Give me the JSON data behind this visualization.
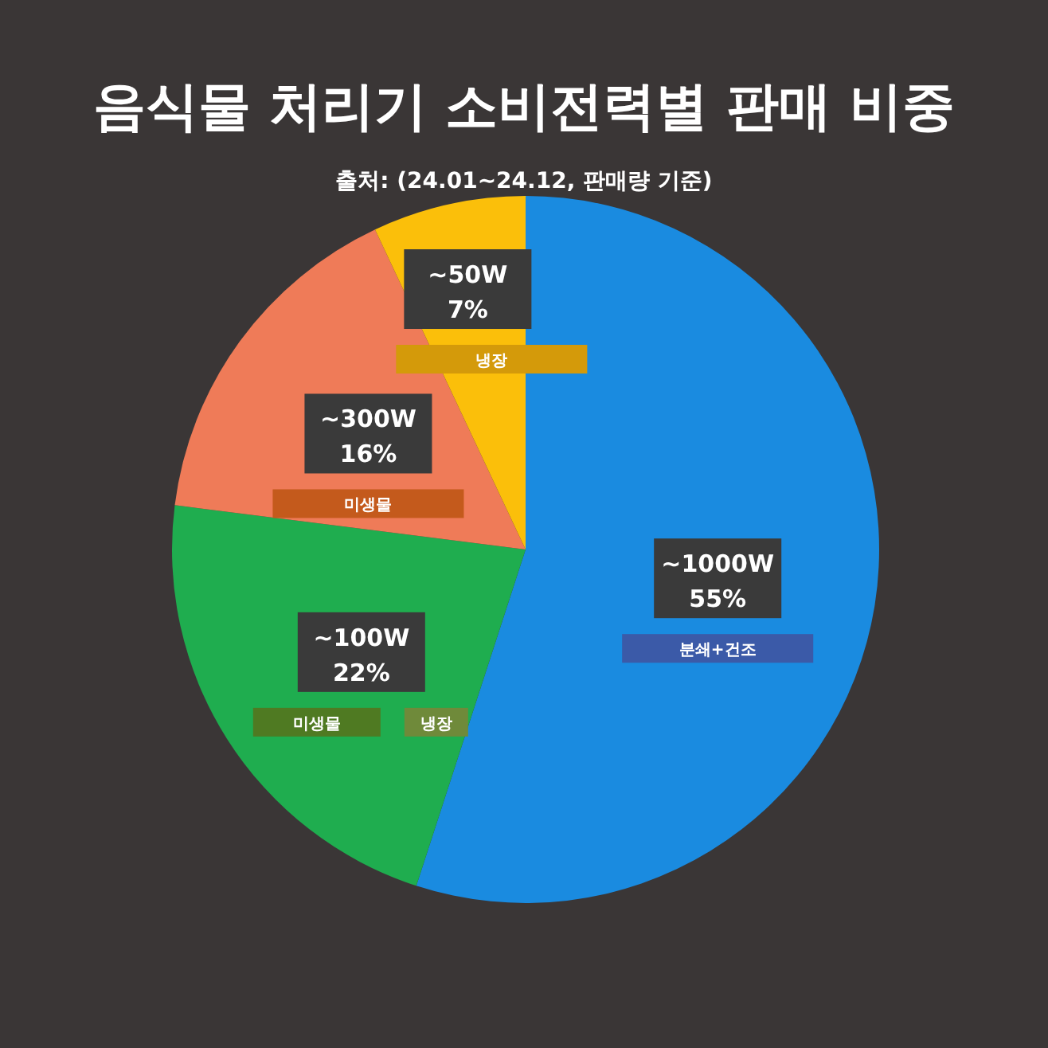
{
  "chart_data": {
    "type": "pie",
    "title": "음식물 처리기 소비전력별 판매 비중",
    "subtitle": "출처: (24.01~24.12, 판매량 기준)",
    "categories": [
      "~1000W",
      "~100W",
      "~300W",
      "~50W"
    ],
    "values": [
      55,
      22,
      16,
      7
    ],
    "colors": [
      "#1a8be0",
      "#1fad4f",
      "#ef7b58",
      "#fbbf0a"
    ],
    "value_labels": [
      "55%",
      "22%",
      "16%",
      "7%"
    ],
    "annotations": [
      "분쇄+건조",
      "미생물",
      "냉장",
      "미생물",
      "냉장"
    ]
  }
}
